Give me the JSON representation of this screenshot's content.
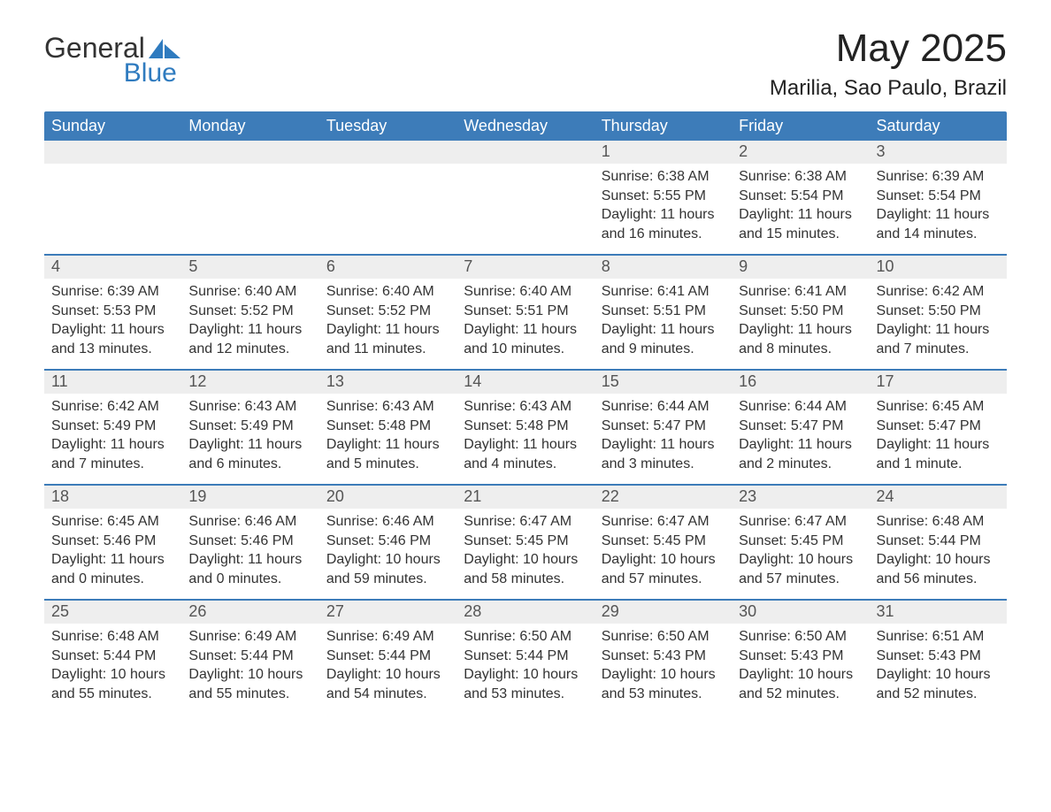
{
  "logo": {
    "word1": "General",
    "word2": "Blue"
  },
  "title": "May 2025",
  "location": "Marilia, Sao Paulo, Brazil",
  "colors": {
    "header_bg": "#3d7cb9",
    "header_text": "#ffffff",
    "row_separator": "#3d7cb9",
    "daynum_bg": "#eeeeee",
    "text": "#333333",
    "logo_blue": "#2f7bbf"
  },
  "weekdays": [
    "Sunday",
    "Monday",
    "Tuesday",
    "Wednesday",
    "Thursday",
    "Friday",
    "Saturday"
  ],
  "weeks": [
    [
      {
        "blank": true
      },
      {
        "blank": true
      },
      {
        "blank": true
      },
      {
        "blank": true
      },
      {
        "day": "1",
        "sunrise": "Sunrise: 6:38 AM",
        "sunset": "Sunset: 5:55 PM",
        "daylight": "Daylight: 11 hours and 16 minutes."
      },
      {
        "day": "2",
        "sunrise": "Sunrise: 6:38 AM",
        "sunset": "Sunset: 5:54 PM",
        "daylight": "Daylight: 11 hours and 15 minutes."
      },
      {
        "day": "3",
        "sunrise": "Sunrise: 6:39 AM",
        "sunset": "Sunset: 5:54 PM",
        "daylight": "Daylight: 11 hours and 14 minutes."
      }
    ],
    [
      {
        "day": "4",
        "sunrise": "Sunrise: 6:39 AM",
        "sunset": "Sunset: 5:53 PM",
        "daylight": "Daylight: 11 hours and 13 minutes."
      },
      {
        "day": "5",
        "sunrise": "Sunrise: 6:40 AM",
        "sunset": "Sunset: 5:52 PM",
        "daylight": "Daylight: 11 hours and 12 minutes."
      },
      {
        "day": "6",
        "sunrise": "Sunrise: 6:40 AM",
        "sunset": "Sunset: 5:52 PM",
        "daylight": "Daylight: 11 hours and 11 minutes."
      },
      {
        "day": "7",
        "sunrise": "Sunrise: 6:40 AM",
        "sunset": "Sunset: 5:51 PM",
        "daylight": "Daylight: 11 hours and 10 minutes."
      },
      {
        "day": "8",
        "sunrise": "Sunrise: 6:41 AM",
        "sunset": "Sunset: 5:51 PM",
        "daylight": "Daylight: 11 hours and 9 minutes."
      },
      {
        "day": "9",
        "sunrise": "Sunrise: 6:41 AM",
        "sunset": "Sunset: 5:50 PM",
        "daylight": "Daylight: 11 hours and 8 minutes."
      },
      {
        "day": "10",
        "sunrise": "Sunrise: 6:42 AM",
        "sunset": "Sunset: 5:50 PM",
        "daylight": "Daylight: 11 hours and 7 minutes."
      }
    ],
    [
      {
        "day": "11",
        "sunrise": "Sunrise: 6:42 AM",
        "sunset": "Sunset: 5:49 PM",
        "daylight": "Daylight: 11 hours and 7 minutes."
      },
      {
        "day": "12",
        "sunrise": "Sunrise: 6:43 AM",
        "sunset": "Sunset: 5:49 PM",
        "daylight": "Daylight: 11 hours and 6 minutes."
      },
      {
        "day": "13",
        "sunrise": "Sunrise: 6:43 AM",
        "sunset": "Sunset: 5:48 PM",
        "daylight": "Daylight: 11 hours and 5 minutes."
      },
      {
        "day": "14",
        "sunrise": "Sunrise: 6:43 AM",
        "sunset": "Sunset: 5:48 PM",
        "daylight": "Daylight: 11 hours and 4 minutes."
      },
      {
        "day": "15",
        "sunrise": "Sunrise: 6:44 AM",
        "sunset": "Sunset: 5:47 PM",
        "daylight": "Daylight: 11 hours and 3 minutes."
      },
      {
        "day": "16",
        "sunrise": "Sunrise: 6:44 AM",
        "sunset": "Sunset: 5:47 PM",
        "daylight": "Daylight: 11 hours and 2 minutes."
      },
      {
        "day": "17",
        "sunrise": "Sunrise: 6:45 AM",
        "sunset": "Sunset: 5:47 PM",
        "daylight": "Daylight: 11 hours and 1 minute."
      }
    ],
    [
      {
        "day": "18",
        "sunrise": "Sunrise: 6:45 AM",
        "sunset": "Sunset: 5:46 PM",
        "daylight": "Daylight: 11 hours and 0 minutes."
      },
      {
        "day": "19",
        "sunrise": "Sunrise: 6:46 AM",
        "sunset": "Sunset: 5:46 PM",
        "daylight": "Daylight: 11 hours and 0 minutes."
      },
      {
        "day": "20",
        "sunrise": "Sunrise: 6:46 AM",
        "sunset": "Sunset: 5:46 PM",
        "daylight": "Daylight: 10 hours and 59 minutes."
      },
      {
        "day": "21",
        "sunrise": "Sunrise: 6:47 AM",
        "sunset": "Sunset: 5:45 PM",
        "daylight": "Daylight: 10 hours and 58 minutes."
      },
      {
        "day": "22",
        "sunrise": "Sunrise: 6:47 AM",
        "sunset": "Sunset: 5:45 PM",
        "daylight": "Daylight: 10 hours and 57 minutes."
      },
      {
        "day": "23",
        "sunrise": "Sunrise: 6:47 AM",
        "sunset": "Sunset: 5:45 PM",
        "daylight": "Daylight: 10 hours and 57 minutes."
      },
      {
        "day": "24",
        "sunrise": "Sunrise: 6:48 AM",
        "sunset": "Sunset: 5:44 PM",
        "daylight": "Daylight: 10 hours and 56 minutes."
      }
    ],
    [
      {
        "day": "25",
        "sunrise": "Sunrise: 6:48 AM",
        "sunset": "Sunset: 5:44 PM",
        "daylight": "Daylight: 10 hours and 55 minutes."
      },
      {
        "day": "26",
        "sunrise": "Sunrise: 6:49 AM",
        "sunset": "Sunset: 5:44 PM",
        "daylight": "Daylight: 10 hours and 55 minutes."
      },
      {
        "day": "27",
        "sunrise": "Sunrise: 6:49 AM",
        "sunset": "Sunset: 5:44 PM",
        "daylight": "Daylight: 10 hours and 54 minutes."
      },
      {
        "day": "28",
        "sunrise": "Sunrise: 6:50 AM",
        "sunset": "Sunset: 5:44 PM",
        "daylight": "Daylight: 10 hours and 53 minutes."
      },
      {
        "day": "29",
        "sunrise": "Sunrise: 6:50 AM",
        "sunset": "Sunset: 5:43 PM",
        "daylight": "Daylight: 10 hours and 53 minutes."
      },
      {
        "day": "30",
        "sunrise": "Sunrise: 6:50 AM",
        "sunset": "Sunset: 5:43 PM",
        "daylight": "Daylight: 10 hours and 52 minutes."
      },
      {
        "day": "31",
        "sunrise": "Sunrise: 6:51 AM",
        "sunset": "Sunset: 5:43 PM",
        "daylight": "Daylight: 10 hours and 52 minutes."
      }
    ]
  ]
}
